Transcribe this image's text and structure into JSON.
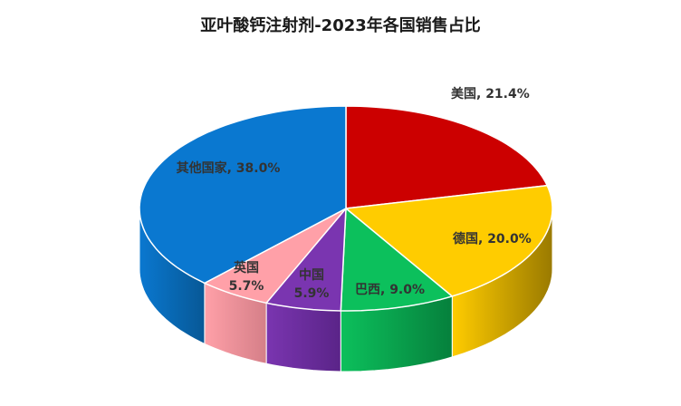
{
  "chart_data": {
    "type": "pie",
    "style": "3d",
    "title": "亚叶酸钙注射剂-2023年各国销售占比",
    "start_angle": "12 o'clock, clockwise",
    "legend": "none",
    "slices": [
      {
        "name": "美国",
        "value": 21.4,
        "label": "21.4%",
        "color": "#CC0000",
        "side": "#8A0000"
      },
      {
        "name": "德国",
        "value": 20.0,
        "label": "20.0%",
        "color": "#FFCC00",
        "side": "#9A7A00"
      },
      {
        "name": "巴西",
        "value": 9.0,
        "label": "9.0%",
        "color": "#0CC05C",
        "side": "#06803C"
      },
      {
        "name": "中国",
        "value": 5.9,
        "label": "5.9%",
        "color": "#7A35B0",
        "side": "#5A2488"
      },
      {
        "name": "英国",
        "value": 5.7,
        "label": "5.7%",
        "color": "#FFA0A8",
        "side": "#D57F88"
      },
      {
        "name": "其他国家",
        "value": 38.0,
        "label": "38.0%",
        "color": "#0A78D0",
        "side": "#075896"
      }
    ]
  }
}
